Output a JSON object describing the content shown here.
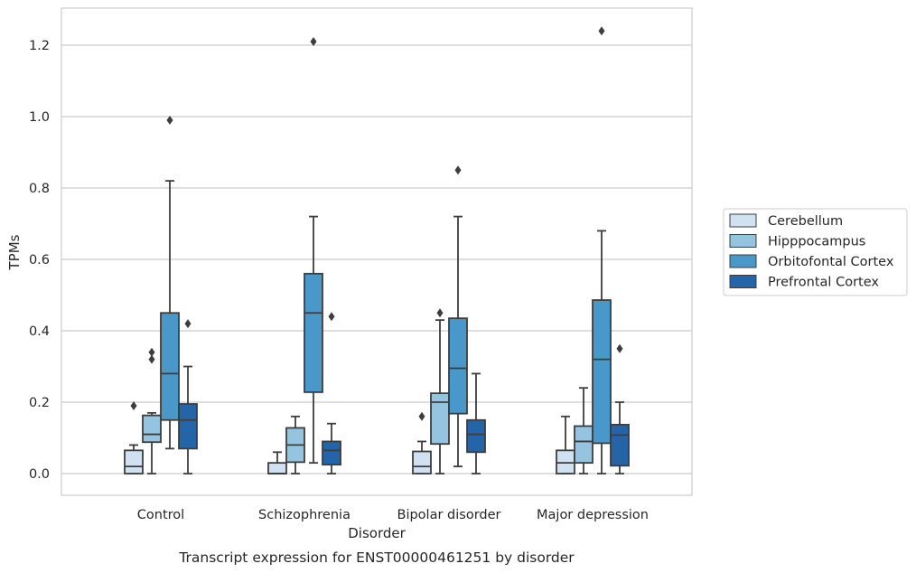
{
  "chart_data": {
    "type": "box",
    "title": "",
    "caption": "Transcript expression for ENST00000461251 by disorder",
    "xlabel": "Disorder",
    "ylabel": "TPMs",
    "ylim": [
      -0.06,
      1.3
    ],
    "yticks": [
      "0.0",
      "0.2",
      "0.4",
      "0.6",
      "0.8",
      "1.0",
      "1.2"
    ],
    "ytick_values": [
      0.0,
      0.2,
      0.4,
      0.6,
      0.8,
      1.0,
      1.2
    ],
    "grid": "horizontal",
    "legend_position": "right",
    "categories": [
      "Control",
      "Schizophrenia",
      "Bipolar disorder",
      "Major depression"
    ],
    "series": [
      {
        "name": "Cerebellum",
        "color": "#d0e1f2",
        "boxes": [
          {
            "whisker_low": 0.0,
            "q1": 0.0,
            "median": 0.02,
            "q3": 0.065,
            "whisker_high": 0.08,
            "outliers": [
              0.19
            ]
          },
          {
            "whisker_low": 0.0,
            "q1": 0.0,
            "median": 0.0,
            "q3": 0.03,
            "whisker_high": 0.06,
            "outliers": []
          },
          {
            "whisker_low": 0.0,
            "q1": 0.0,
            "median": 0.02,
            "q3": 0.062,
            "whisker_high": 0.09,
            "outliers": [
              0.16
            ]
          },
          {
            "whisker_low": 0.0,
            "q1": 0.0,
            "median": 0.03,
            "q3": 0.065,
            "whisker_high": 0.16,
            "outliers": []
          }
        ]
      },
      {
        "name": "Hipppocampus",
        "color": "#94c4df",
        "boxes": [
          {
            "whisker_low": 0.0,
            "q1": 0.088,
            "median": 0.11,
            "q3": 0.163,
            "whisker_high": 0.17,
            "outliers": [
              0.32,
              0.34
            ]
          },
          {
            "whisker_low": 0.0,
            "q1": 0.032,
            "median": 0.08,
            "q3": 0.128,
            "whisker_high": 0.16,
            "outliers": []
          },
          {
            "whisker_low": 0.0,
            "q1": 0.083,
            "median": 0.2,
            "q3": 0.225,
            "whisker_high": 0.43,
            "outliers": [
              0.45
            ]
          },
          {
            "whisker_low": 0.0,
            "q1": 0.03,
            "median": 0.09,
            "q3": 0.133,
            "whisker_high": 0.24,
            "outliers": []
          }
        ]
      },
      {
        "name": "Orbitofontal Cortex",
        "color": "#4a98c9",
        "boxes": [
          {
            "whisker_low": 0.07,
            "q1": 0.15,
            "median": 0.28,
            "q3": 0.45,
            "whisker_high": 0.82,
            "outliers": [
              0.99
            ]
          },
          {
            "whisker_low": 0.03,
            "q1": 0.228,
            "median": 0.45,
            "q3": 0.56,
            "whisker_high": 0.72,
            "outliers": [
              1.21
            ]
          },
          {
            "whisker_low": 0.02,
            "q1": 0.168,
            "median": 0.295,
            "q3": 0.435,
            "whisker_high": 0.72,
            "outliers": [
              0.85
            ]
          },
          {
            "whisker_low": 0.0,
            "q1": 0.085,
            "median": 0.32,
            "q3": 0.486,
            "whisker_high": 0.68,
            "outliers": [
              1.24
            ]
          }
        ]
      },
      {
        "name": "Prefrontal Cortex",
        "color": "#2465a9",
        "boxes": [
          {
            "whisker_low": 0.0,
            "q1": 0.07,
            "median": 0.15,
            "q3": 0.195,
            "whisker_high": 0.3,
            "outliers": [
              0.42
            ]
          },
          {
            "whisker_low": 0.0,
            "q1": 0.025,
            "median": 0.065,
            "q3": 0.09,
            "whisker_high": 0.14,
            "outliers": [
              0.44
            ]
          },
          {
            "whisker_low": 0.0,
            "q1": 0.06,
            "median": 0.11,
            "q3": 0.15,
            "whisker_high": 0.28,
            "outliers": []
          },
          {
            "whisker_low": 0.0,
            "q1": 0.022,
            "median": 0.108,
            "q3": 0.137,
            "whisker_high": 0.2,
            "outliers": [
              0.35
            ]
          }
        ]
      }
    ]
  }
}
